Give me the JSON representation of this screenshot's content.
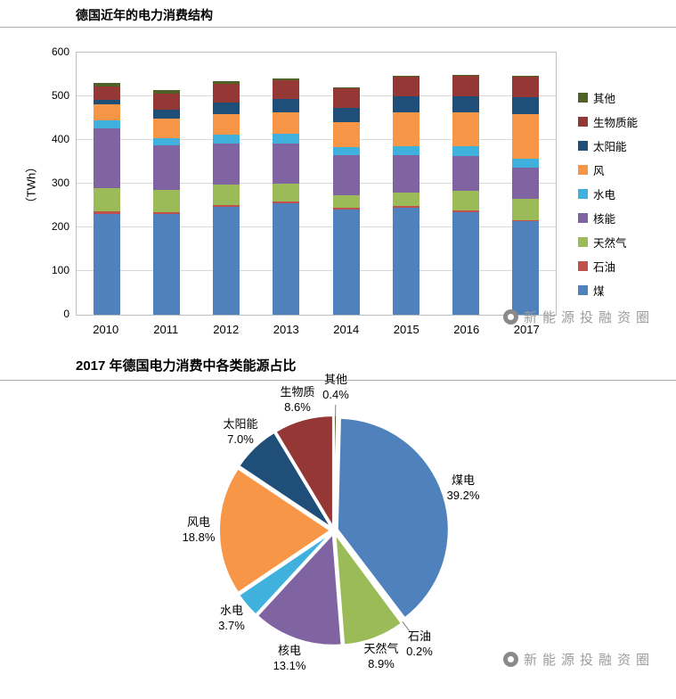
{
  "watermark": {
    "text": "新能源投融资圈"
  },
  "chart_data": [
    {
      "type": "bar",
      "stacked": true,
      "title": "德国近年的电力消费结构",
      "ylabel": "（TWh）",
      "xlabel": "",
      "ylim": [
        0,
        600
      ],
      "ytick_interval": 100,
      "grid": true,
      "legend_position": "right",
      "categories": [
        "2010",
        "2011",
        "2012",
        "2013",
        "2014",
        "2015",
        "2016",
        "2017"
      ],
      "series": [
        {
          "name": "煤",
          "color": "#4F81BD",
          "values": [
            230,
            230,
            247,
            255,
            240,
            245,
            235,
            215
          ]
        },
        {
          "name": "石油",
          "color": "#C0504D",
          "values": [
            6,
            5,
            5,
            5,
            4,
            4,
            4,
            1
          ]
        },
        {
          "name": "天然气",
          "color": "#9BBB59",
          "values": [
            55,
            50,
            45,
            40,
            30,
            30,
            45,
            49
          ]
        },
        {
          "name": "核能",
          "color": "#8064A2",
          "values": [
            135,
            102,
            94,
            92,
            91,
            87,
            80,
            72
          ]
        },
        {
          "name": "水电",
          "color": "#3FB1DC",
          "values": [
            19,
            17,
            21,
            22,
            19,
            19,
            21,
            20
          ]
        },
        {
          "name": "风",
          "color": "#F79646",
          "values": [
            36,
            46,
            48,
            50,
            56,
            79,
            78,
            103
          ]
        },
        {
          "name": "太阳能",
          "color": "#1F4E79",
          "values": [
            11,
            19,
            26,
            30,
            33,
            37,
            37,
            38
          ]
        },
        {
          "name": "生物质能",
          "color": "#953735",
          "values": [
            30,
            37,
            43,
            42,
            45,
            45,
            47,
            47
          ]
        },
        {
          "name": "其他",
          "color": "#4F6228",
          "values": [
            8,
            9,
            6,
            4,
            2,
            2,
            2,
            2
          ]
        }
      ],
      "legend_order_top_to_bottom": [
        "其他",
        "生物质能",
        "太阳能",
        "风",
        "水电",
        "核能",
        "天然气",
        "石油",
        "煤"
      ]
    },
    {
      "type": "pie",
      "title": "2017 年德国电力消费中各类能源占比",
      "start_angle_deg": -90,
      "direction": "clockwise",
      "slices": [
        {
          "label": "其他",
          "pct": 0.4,
          "pct_label": "0.4%",
          "color": "#4F6228"
        },
        {
          "label": "煤电",
          "pct": 39.2,
          "pct_label": "39.2%",
          "color": "#4F81BD"
        },
        {
          "label": "石油",
          "pct": 0.2,
          "pct_label": "0.2%",
          "color": "#C0504D"
        },
        {
          "label": "天然气",
          "pct": 8.9,
          "pct_label": "8.9%",
          "color": "#9BBB59"
        },
        {
          "label": "核电",
          "pct": 13.1,
          "pct_label": "13.1%",
          "color": "#8064A2"
        },
        {
          "label": "水电",
          "pct": 3.7,
          "pct_label": "3.7%",
          "color": "#3FB1DC"
        },
        {
          "label": "风电",
          "pct": 18.8,
          "pct_label": "18.8%",
          "color": "#F79646"
        },
        {
          "label": "太阳能",
          "pct": 7.0,
          "pct_label": "7.0%",
          "color": "#1F4E79"
        },
        {
          "label": "生物质",
          "pct": 8.6,
          "pct_label": "8.6%",
          "color": "#953735"
        }
      ]
    }
  ]
}
